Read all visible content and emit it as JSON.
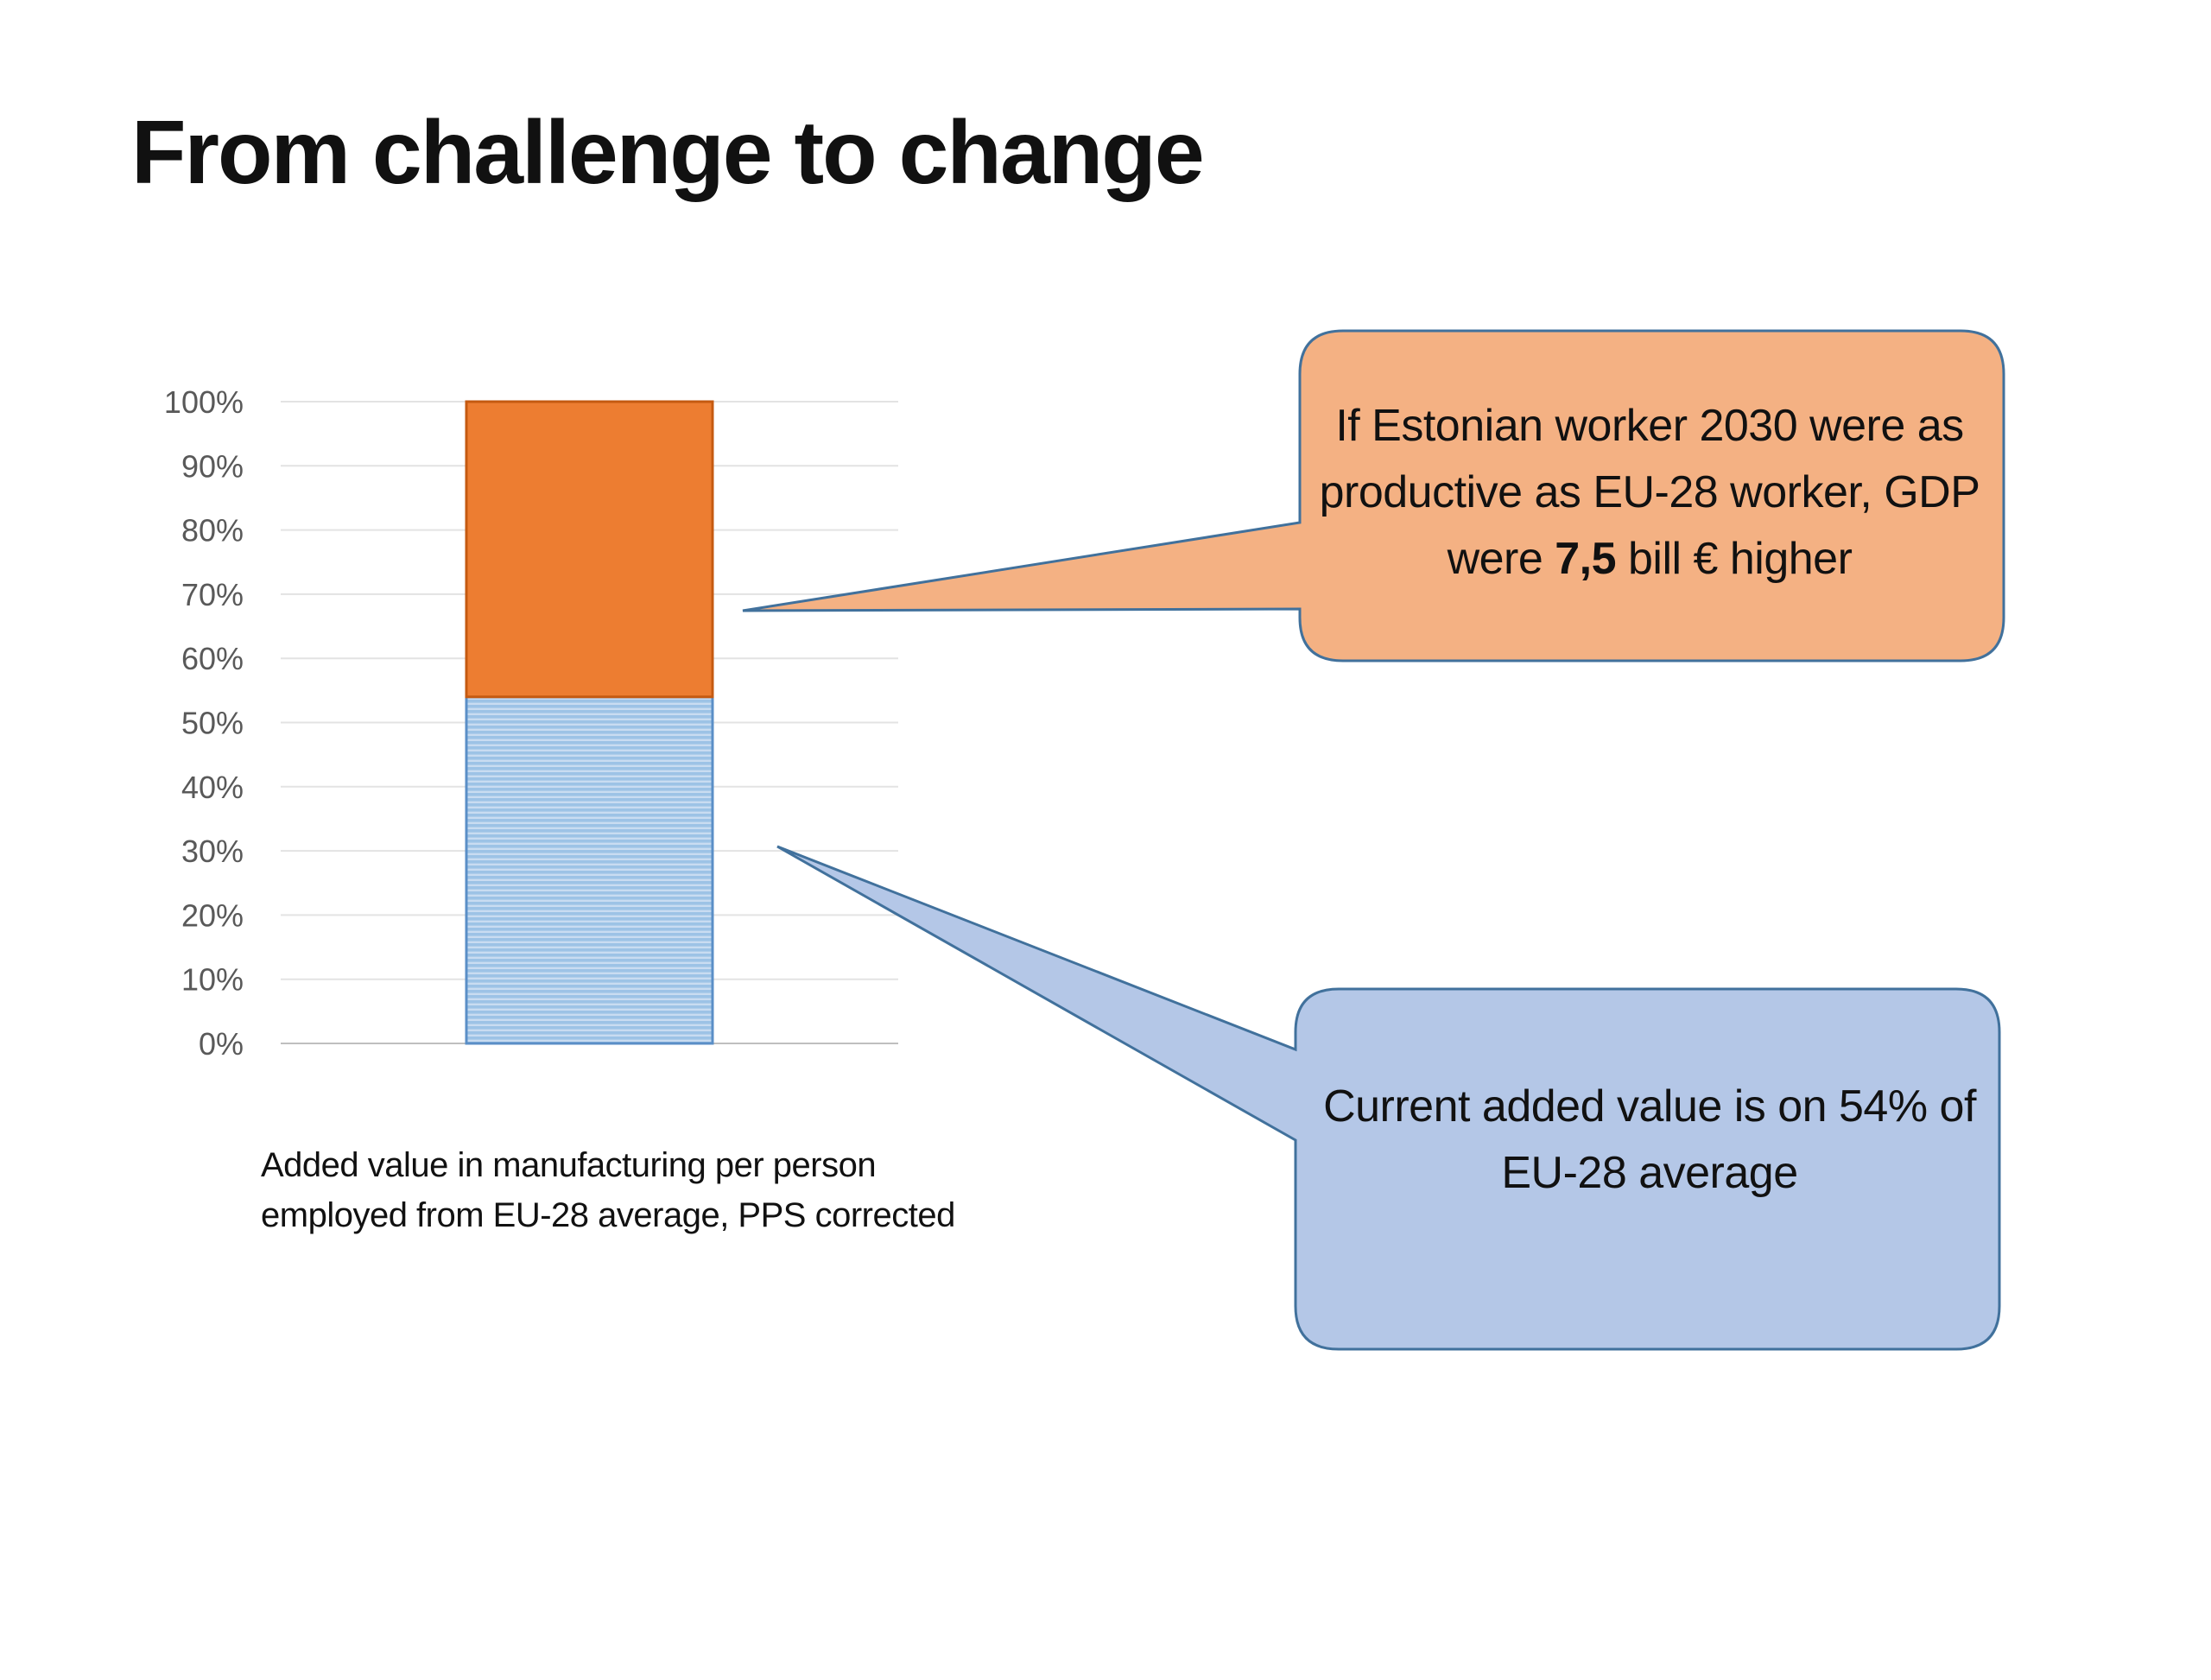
{
  "slide": {
    "title": "From challenge to change",
    "caption": "Added value in manufacturing per person employed from EU-28 average, PPS corrected"
  },
  "callouts": {
    "orange": {
      "text_before": "If Estonian worker 2030 were as productive as EU-28 worker, GDP were ",
      "text_bold": "7,5",
      "text_after": " bill € higher",
      "fill": "#f4b183",
      "stroke": "#41719c"
    },
    "blue": {
      "text": "Current added value is on 54% of EU-28 average",
      "fill": "#b4c7e7",
      "stroke": "#41719c"
    }
  },
  "chart_data": {
    "type": "bar",
    "stacked": true,
    "categories": [
      ""
    ],
    "series": [
      {
        "values": [
          54
        ],
        "color": "#9dc3e6"
      },
      {
        "values": [
          46
        ],
        "color": "#ed7d31"
      }
    ],
    "ylim": [
      0,
      100
    ],
    "yticks": [
      "0%",
      "10%",
      "20%",
      "30%",
      "40%",
      "50%",
      "60%",
      "70%",
      "80%",
      "90%",
      "100%"
    ],
    "grid": true,
    "xlabel": "",
    "ylabel": ""
  }
}
